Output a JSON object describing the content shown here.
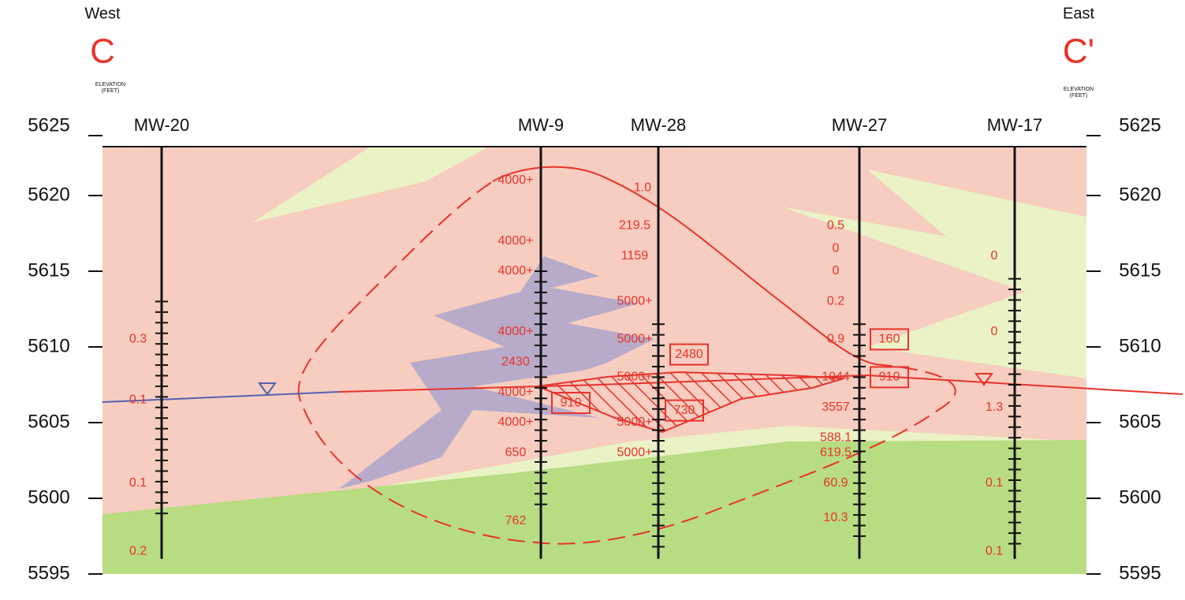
{
  "header": {
    "west": "West",
    "west_letter": "C",
    "east": "East",
    "east_letter": "C'",
    "elevation_label": "ELEVATION",
    "elevation_unit": "(FEET)"
  },
  "axis": {
    "ticks": [
      5625,
      5620,
      5615,
      5610,
      5605,
      5600,
      5595
    ]
  },
  "wells": [
    {
      "name": "MW-20",
      "labels": [
        "0.3",
        "0.1",
        "0.1",
        "0.2"
      ],
      "boxed": []
    },
    {
      "name": "MW-9",
      "labels": [
        "4000+",
        "4000+",
        "4000+",
        "4000+",
        "2430",
        "4000+",
        "4000+",
        "650",
        "762"
      ],
      "boxed": [
        "910"
      ]
    },
    {
      "name": "MW-28",
      "labels": [
        "1.0",
        "219.5",
        "1159",
        "5000+",
        "5000+",
        "5000+",
        "5000+",
        "5000+"
      ],
      "boxed": [
        "2480",
        "730"
      ]
    },
    {
      "name": "MW-27",
      "labels": [
        "0.5",
        "0",
        "0",
        "0.2",
        "0.9",
        "1044",
        "3557",
        "588.1",
        "619.5",
        "60.9",
        "10.3"
      ],
      "boxed": [
        "160",
        "910"
      ]
    },
    {
      "name": "MW-17",
      "labels": [
        "0",
        "0",
        "1.3",
        "0.1",
        "0.1"
      ],
      "boxed": []
    }
  ]
}
